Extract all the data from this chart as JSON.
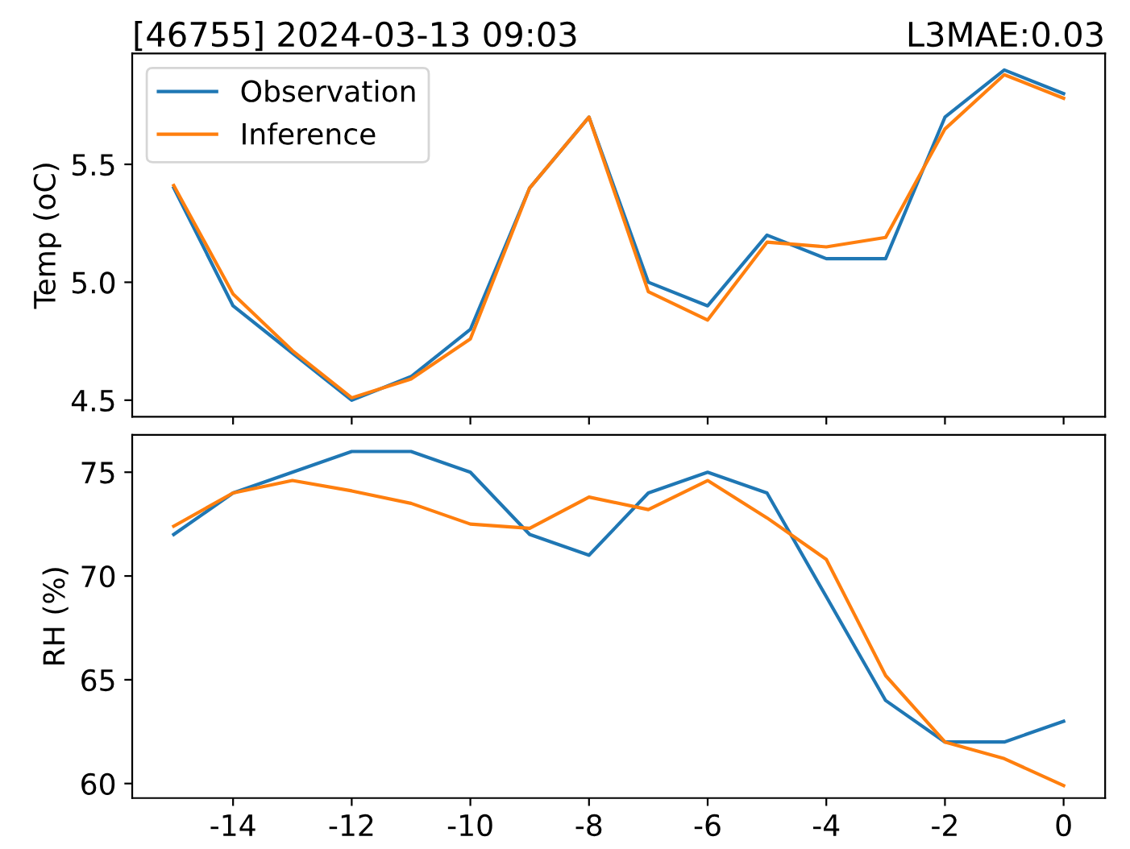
{
  "chart_data": [
    {
      "type": "line",
      "title": "[46755] 2024-03-13 09:03",
      "subtitle": "L3MAE:0.03",
      "ylabel": "Temp (oC)",
      "x": [
        -15,
        -14,
        -13,
        -12,
        -11,
        -10,
        -9,
        -8,
        -7,
        -6,
        -5,
        -4,
        -3,
        -2,
        -1,
        0
      ],
      "xlim": [
        -15.7,
        0.7
      ],
      "xticks": [
        -14,
        -12,
        -10,
        -8,
        -6,
        -4,
        -2,
        0
      ],
      "ylim": [
        4.43,
        5.97
      ],
      "yticks": [
        4.5,
        {
          "value": 5,
          "label": "5.0"
        },
        5.5
      ],
      "tick_labels": "y",
      "legend": "top left",
      "grid": false,
      "series": [
        {
          "name": "Observation",
          "color": "#1f77b4",
          "values": [
            5.4,
            4.9,
            4.7,
            4.5,
            4.6,
            4.8,
            5.4,
            5.7,
            5.0,
            4.9,
            5.2,
            5.1,
            5.1,
            5.7,
            5.9,
            5.8
          ]
        },
        {
          "name": "Inference",
          "color": "#ff7f0e",
          "values": [
            5.41,
            4.95,
            4.71,
            4.51,
            4.59,
            4.76,
            5.4,
            5.7,
            4.96,
            4.84,
            5.17,
            5.15,
            5.19,
            5.65,
            5.88,
            5.78
          ]
        }
      ]
    },
    {
      "type": "line",
      "ylabel": "RH (%)",
      "x": [
        -15,
        -14,
        -13,
        -12,
        -11,
        -10,
        -9,
        -8,
        -7,
        -6,
        -5,
        -4,
        -3,
        -2,
        -1,
        0
      ],
      "xlim": [
        -15.7,
        0.7
      ],
      "xticks": [
        -14,
        -12,
        -10,
        -8,
        -6,
        -4,
        -2,
        0
      ],
      "ylim": [
        59.3,
        76.8
      ],
      "yticks": [
        60,
        65,
        70,
        75
      ],
      "grid": false,
      "series": [
        {
          "color": "#1f77b4",
          "values": [
            72,
            74,
            75,
            76,
            76,
            75,
            72,
            71,
            74,
            75,
            74,
            69,
            64,
            62,
            62,
            63
          ]
        },
        {
          "color": "#ff7f0e",
          "values": [
            72.4,
            74,
            74.6,
            74.1,
            73.5,
            72.5,
            72.3,
            73.8,
            73.2,
            74.6,
            72.8,
            70.8,
            65.2,
            62,
            61.2,
            59.9
          ]
        }
      ]
    }
  ]
}
